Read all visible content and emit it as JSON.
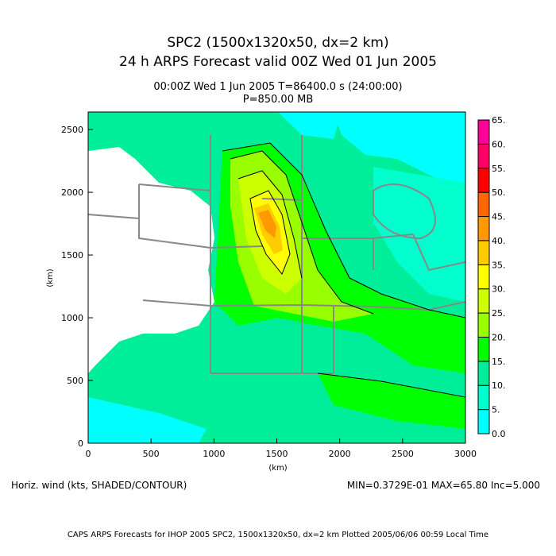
{
  "header": {
    "title_line1": "SPC2 (1500x1320x50, dx=2 km)",
    "title_line2": "24 h ARPS Forecast valid 00Z Wed 01 Jun 2005",
    "time_line": "00:00Z Wed  1 Jun 2005      T=86400.0 s (24:00:00)",
    "level_line": "P=850.00 MB"
  },
  "plot": {
    "x_axis": {
      "label": "(km)",
      "ticks": [
        0,
        500,
        1000,
        1500,
        2000,
        2500,
        3000
      ],
      "range": [
        0,
        3000
      ]
    },
    "y_axis": {
      "label": "(km)",
      "ticks": [
        0,
        500,
        1000,
        1500,
        2000,
        2500
      ],
      "range": [
        0,
        2640
      ]
    },
    "colors": {
      "masked": "#ffffff",
      "boundaries": "#888888",
      "contours": "#000000"
    }
  },
  "colorbar": {
    "levels": [
      "0.0",
      "5.",
      "10.",
      "15.",
      "20.",
      "25.",
      "30.",
      "35.",
      "40.",
      "45.",
      "50.",
      "55.",
      "60.",
      "65."
    ],
    "colors": [
      "#00ffff",
      "#00ffcc",
      "#00ee99",
      "#00ff00",
      "#99ff00",
      "#ccff00",
      "#ffff00",
      "#ffcc00",
      "#ff9900",
      "#ff6600",
      "#ff0000",
      "#ff0066",
      "#ff0099"
    ]
  },
  "footer": {
    "variable_label": "Horiz. wind (kts, SHADED/CONTOUR)",
    "stats": "MIN=0.3729E-01  MAX=65.80  Inc=5.000",
    "credit": "CAPS ARPS Forecasts for IHOP 2005   SPC2, 1500x1320x50, dx=2 km   Plotted 2005/06/06 00:59 Local Time"
  },
  "chart_data": {
    "type": "heatmap",
    "title": "Horiz. wind (kts) at P=850.00 MB",
    "xlabel": "(km)",
    "ylabel": "(km)",
    "xlim": [
      0,
      3000
    ],
    "ylim": [
      0,
      2640
    ],
    "min": 0.03729,
    "max": 65.8,
    "increment": 5.0
  }
}
